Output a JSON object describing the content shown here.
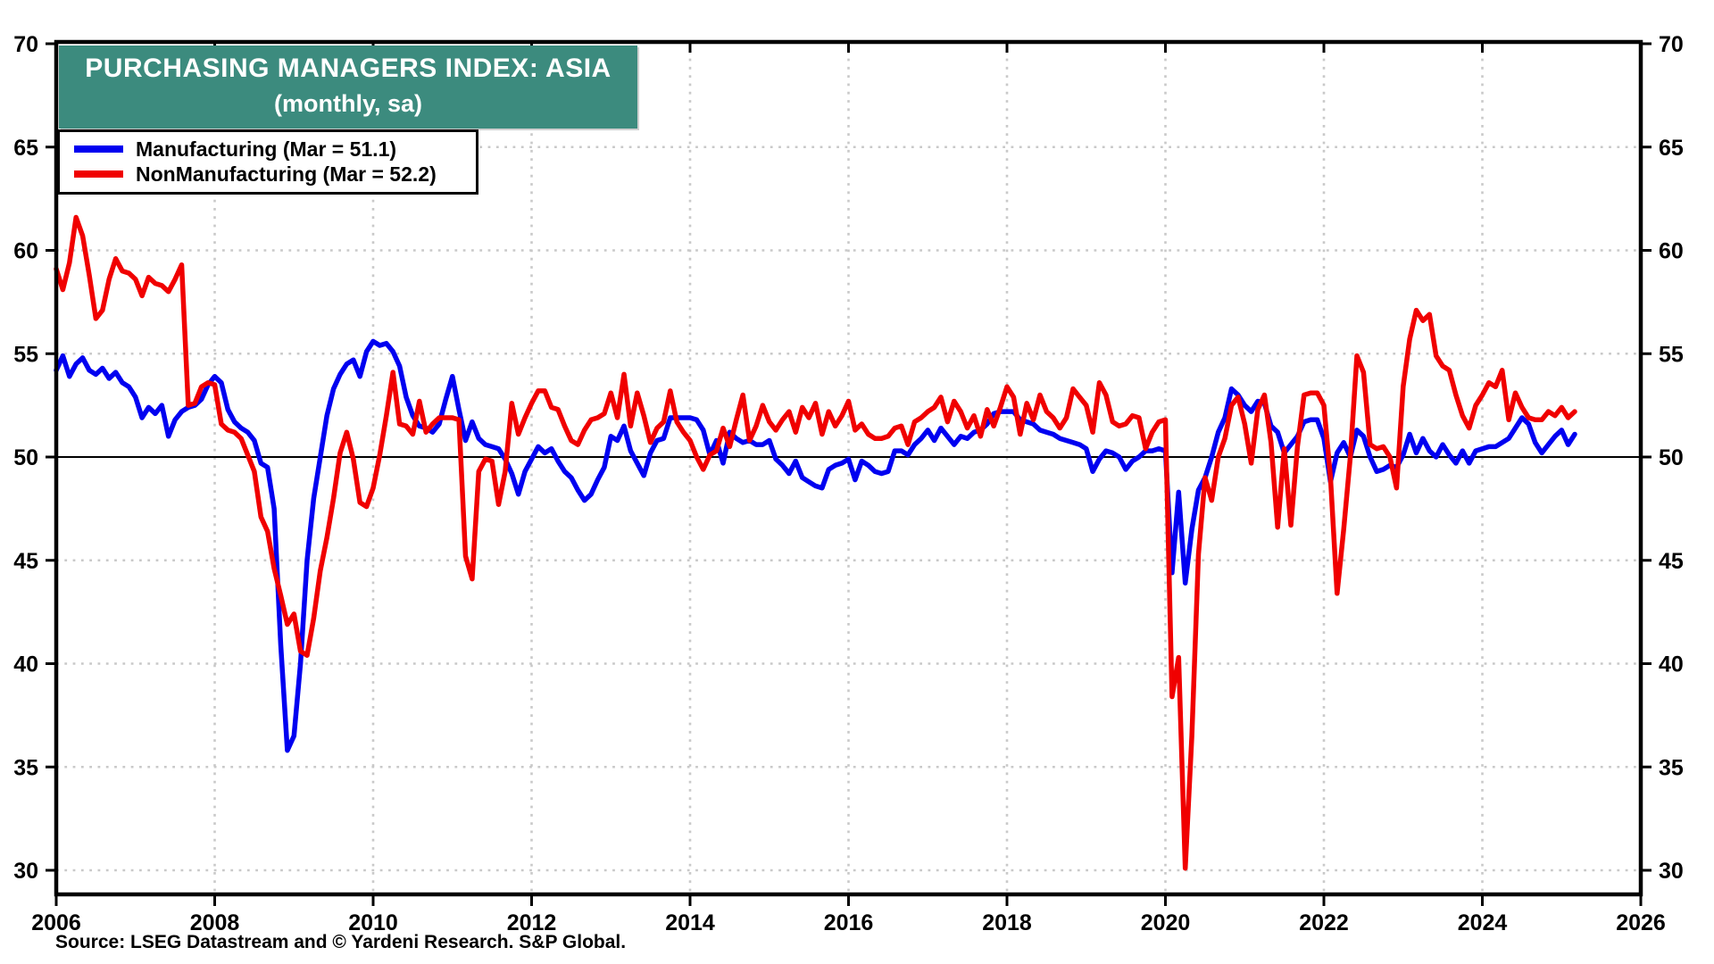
{
  "chart": {
    "title": "PURCHASING MANAGERS INDEX: ASIA",
    "subtitle": "(monthly, sa)",
    "source": "Source: LSEG Datastream and © Yardeni Research. S&P Global.",
    "legend": [
      {
        "label": "Manufacturing (Mar = 51.1)",
        "color": "#0000f0"
      },
      {
        "label": "NonManufacturing (Mar = 52.2)",
        "color": "#f00000"
      }
    ]
  },
  "chart_data": {
    "type": "line",
    "title": "PURCHASING MANAGERS INDEX: ASIA",
    "subtitle": "(monthly, sa)",
    "frequency": "monthly",
    "x_start": {
      "year": 2006,
      "month": "Jan"
    },
    "x_end": {
      "year": 2025,
      "month": "Mar"
    },
    "xlim": [
      2006,
      2026
    ],
    "ylim": [
      28.8,
      70
    ],
    "yticks": [
      30,
      35,
      40,
      45,
      50,
      55,
      60,
      65,
      70
    ],
    "xticks": [
      2006,
      2008,
      2010,
      2012,
      2014,
      2016,
      2018,
      2020,
      2022,
      2024,
      2026
    ],
    "reference_line": 50,
    "grid": "dotted",
    "legend_position": "top-left",
    "colors": {
      "grid": "#c9c9c9",
      "axis": "#000000",
      "title_bg": "#3c8b7e"
    },
    "series": [
      {
        "name": "Manufacturing (Mar = 51.1)",
        "color": "#0000f0",
        "values": [
          54.2,
          54.9,
          53.9,
          54.5,
          54.8,
          54.2,
          54.0,
          54.3,
          53.8,
          54.1,
          53.6,
          53.4,
          52.9,
          51.9,
          52.4,
          52.1,
          52.5,
          51.0,
          51.8,
          52.2,
          52.4,
          52.5,
          52.8,
          53.5,
          53.9,
          53.6,
          52.3,
          51.7,
          51.4,
          51.2,
          50.8,
          49.7,
          49.5,
          47.5,
          40.9,
          35.8,
          36.5,
          40.0,
          45.0,
          48.0,
          50.0,
          52.0,
          53.3,
          54.0,
          54.5,
          54.7,
          53.9,
          55.1,
          55.6,
          55.4,
          55.5,
          55.1,
          54.4,
          52.9,
          52.0,
          51.5,
          51.4,
          51.2,
          51.6,
          52.8,
          53.9,
          52.3,
          50.8,
          51.7,
          50.9,
          50.6,
          50.5,
          50.4,
          49.9,
          49.2,
          48.2,
          49.3,
          49.9,
          50.5,
          50.2,
          50.4,
          49.8,
          49.3,
          49.0,
          48.4,
          47.9,
          48.2,
          48.9,
          49.5,
          51.0,
          50.8,
          51.5,
          50.3,
          49.7,
          49.1,
          50.2,
          50.8,
          50.9,
          51.9,
          51.9,
          51.9,
          51.9,
          51.8,
          51.3,
          50.1,
          50.8,
          49.7,
          51.2,
          50.9,
          50.7,
          50.8,
          50.6,
          50.6,
          50.8,
          49.9,
          49.6,
          49.2,
          49.8,
          49.0,
          48.8,
          48.6,
          48.5,
          49.4,
          49.6,
          49.7,
          49.9,
          48.9,
          49.8,
          49.6,
          49.3,
          49.2,
          49.3,
          50.3,
          50.3,
          50.1,
          50.6,
          50.9,
          51.3,
          50.8,
          51.4,
          51.0,
          50.6,
          51.0,
          50.9,
          51.2,
          51.3,
          51.6,
          52.1,
          52.2,
          52.2,
          52.2,
          51.8,
          51.7,
          51.6,
          51.3,
          51.2,
          51.1,
          50.9,
          50.8,
          50.7,
          50.6,
          50.4,
          49.3,
          49.9,
          50.3,
          50.2,
          50.0,
          49.4,
          49.8,
          50.0,
          50.3,
          50.3,
          50.4,
          50.3,
          44.4,
          48.3,
          43.9,
          46.5,
          48.4,
          49.0,
          50.0,
          51.2,
          51.9,
          53.3,
          53.0,
          52.5,
          52.2,
          52.7,
          52.6,
          51.5,
          51.2,
          50.2,
          50.6,
          51.0,
          51.7,
          51.8,
          51.8,
          50.9,
          48.8,
          50.2,
          50.7,
          50.0,
          51.3,
          51.0,
          50.0,
          49.3,
          49.4,
          49.6,
          49.5,
          50.1,
          51.1,
          50.2,
          50.9,
          50.3,
          50.0,
          50.6,
          50.1,
          49.7,
          50.3,
          49.7,
          50.3,
          50.4,
          50.5,
          50.5,
          50.7,
          50.9,
          51.4,
          51.9,
          51.6,
          50.7,
          50.2,
          50.6,
          51.0,
          51.3,
          50.6,
          51.1
        ]
      },
      {
        "name": "NonManufacturing (Mar = 52.2)",
        "color": "#f00000",
        "values": [
          59.1,
          58.1,
          59.4,
          61.6,
          60.7,
          58.8,
          56.7,
          57.1,
          58.6,
          59.6,
          59.0,
          58.9,
          58.6,
          57.8,
          58.7,
          58.4,
          58.3,
          58.0,
          58.6,
          59.3,
          52.5,
          52.6,
          53.4,
          53.6,
          53.5,
          51.6,
          51.3,
          51.2,
          50.9,
          50.1,
          49.3,
          47.1,
          46.4,
          44.6,
          43.3,
          41.9,
          42.4,
          40.6,
          40.4,
          42.2,
          44.5,
          46.1,
          48.0,
          50.2,
          51.2,
          49.9,
          47.8,
          47.6,
          48.5,
          50.1,
          52.0,
          54.1,
          51.6,
          51.5,
          51.1,
          52.7,
          51.2,
          51.6,
          51.9,
          51.9,
          51.9,
          51.8,
          45.2,
          44.1,
          49.3,
          49.9,
          49.8,
          47.7,
          49.3,
          52.6,
          51.1,
          51.9,
          52.6,
          53.2,
          53.2,
          52.4,
          52.3,
          51.5,
          50.8,
          50.6,
          51.3,
          51.8,
          51.9,
          52.1,
          53.1,
          51.9,
          54.0,
          51.5,
          53.1,
          52.0,
          50.7,
          51.4,
          51.7,
          53.2,
          51.7,
          51.2,
          50.8,
          50.0,
          49.4,
          50.1,
          50.3,
          51.4,
          50.5,
          51.8,
          53.0,
          50.8,
          51.5,
          52.5,
          51.7,
          51.3,
          51.8,
          52.2,
          51.2,
          52.4,
          51.9,
          52.6,
          51.1,
          52.2,
          51.5,
          52.0,
          52.7,
          51.3,
          51.6,
          51.1,
          50.9,
          50.9,
          51.0,
          51.4,
          51.5,
          50.6,
          51.7,
          51.9,
          52.2,
          52.4,
          52.9,
          51.7,
          52.7,
          52.2,
          51.4,
          52.0,
          51.0,
          52.3,
          51.5,
          52.4,
          53.4,
          52.9,
          51.1,
          52.6,
          51.8,
          53.0,
          52.2,
          51.9,
          51.4,
          51.9,
          53.3,
          52.9,
          52.5,
          51.2,
          53.6,
          53.0,
          51.7,
          51.5,
          51.6,
          52.0,
          51.9,
          50.4,
          51.2,
          51.7,
          51.8,
          38.4,
          40.3,
          30.1,
          36.5,
          45.3,
          49.0,
          47.9,
          50.0,
          50.9,
          52.5,
          52.9,
          51.6,
          49.7,
          52.3,
          53.0,
          50.7,
          46.6,
          50.4,
          46.7,
          50.5,
          53.0,
          53.1,
          53.1,
          52.5,
          49.0,
          43.4,
          46.5,
          50.0,
          54.9,
          54.1,
          50.6,
          50.4,
          50.5,
          50.0,
          48.5,
          53.4,
          55.7,
          57.1,
          56.6,
          56.9,
          54.9,
          54.4,
          54.2,
          53.0,
          52.0,
          51.4,
          52.5,
          53.0,
          53.6,
          53.4,
          54.2,
          51.8,
          53.1,
          52.4,
          51.9,
          51.8,
          51.8,
          52.2,
          52.0,
          52.4,
          51.9,
          52.2
        ]
      }
    ]
  }
}
